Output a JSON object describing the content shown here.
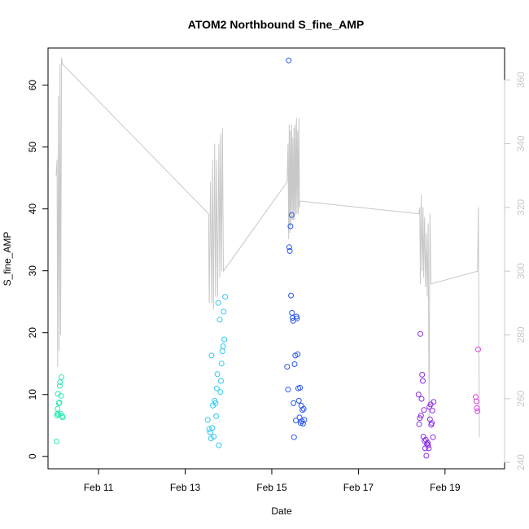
{
  "chart_data": {
    "type": "scatter",
    "title": "ATOM2 Northbound S_fine_AMP",
    "xlabel": "Date",
    "ylabel": "S_fine_AMP",
    "xlim": [
      "2024-02-09T20:00",
      "2024-02-20T09:00"
    ],
    "ylim": [
      -2,
      66
    ],
    "y2lim": [
      238,
      370
    ],
    "x_ticks": [
      "2024-02-11",
      "2024-02-13",
      "2024-02-15",
      "2024-02-17",
      "2024-02-19"
    ],
    "x_tick_labels": [
      "Feb 11",
      "Feb 13",
      "Feb 15",
      "Feb 17",
      "Feb 19"
    ],
    "y_ticks": [
      0,
      10,
      20,
      30,
      40,
      50,
      60
    ],
    "y2_ticks": [
      240,
      260,
      280,
      300,
      320,
      340,
      360
    ],
    "grid": false,
    "colors": {
      "line": "#c8c8c8",
      "axis": "#000000",
      "axis_right": "#c8c8c8",
      "groups": [
        "#2fe8b4",
        "#2fc9f0",
        "#2a55f0",
        "#8a2be8",
        "#d93ee0"
      ]
    },
    "scatter_series": [
      {
        "points": [
          [
            "2024-02-10T00:45",
            2.4
          ],
          [
            "2024-02-10T01:00",
            6.6
          ],
          [
            "2024-02-10T01:10",
            6.9
          ],
          [
            "2024-02-10T01:20",
            7.7
          ],
          [
            "2024-02-10T01:30",
            10.1
          ],
          [
            "2024-02-10T01:50",
            6.8
          ],
          [
            "2024-02-10T02:00",
            8.6
          ],
          [
            "2024-02-10T02:20",
            8.7
          ],
          [
            "2024-02-10T02:30",
            11.4
          ],
          [
            "2024-02-10T02:40",
            12.0
          ],
          [
            "2024-02-10T03:00",
            6.9
          ],
          [
            "2024-02-10T03:10",
            9.8
          ],
          [
            "2024-02-10T03:30",
            12.8
          ],
          [
            "2024-02-10T03:50",
            6.5
          ],
          [
            "2024-02-10T04:10",
            6.3
          ]
        ]
      },
      {
        "points": [
          [
            "2024-02-13T12:30",
            5.9
          ],
          [
            "2024-02-13T13:20",
            4.4
          ],
          [
            "2024-02-13T13:50",
            3.9
          ],
          [
            "2024-02-13T14:20",
            2.9
          ],
          [
            "2024-02-13T14:40",
            16.3
          ],
          [
            "2024-02-13T15:00",
            4.6
          ],
          [
            "2024-02-13T15:20",
            8.2
          ],
          [
            "2024-02-13T15:50",
            3.2
          ],
          [
            "2024-02-13T16:20",
            9.0
          ],
          [
            "2024-02-13T16:50",
            8.6
          ],
          [
            "2024-02-13T17:10",
            6.5
          ],
          [
            "2024-02-13T17:30",
            11.0
          ],
          [
            "2024-02-13T17:50",
            13.3
          ],
          [
            "2024-02-13T18:20",
            24.8
          ],
          [
            "2024-02-13T18:40",
            1.8
          ],
          [
            "2024-02-13T19:10",
            22.1
          ],
          [
            "2024-02-13T19:30",
            10.4
          ],
          [
            "2024-02-13T19:50",
            12.2
          ],
          [
            "2024-02-13T20:10",
            15.0
          ],
          [
            "2024-02-13T20:40",
            17.0
          ],
          [
            "2024-02-13T21:00",
            17.8
          ],
          [
            "2024-02-13T21:20",
            23.4
          ],
          [
            "2024-02-13T21:40",
            18.9
          ],
          [
            "2024-02-13T22:10",
            25.8
          ]
        ]
      },
      {
        "points": [
          [
            "2024-02-15T09:20",
            64.0
          ],
          [
            "2024-02-15T08:30",
            14.5
          ],
          [
            "2024-02-15T09:00",
            10.8
          ],
          [
            "2024-02-15T09:40",
            33.8
          ],
          [
            "2024-02-15T10:00",
            33.2
          ],
          [
            "2024-02-15T10:20",
            37.2
          ],
          [
            "2024-02-15T10:40",
            26.0
          ],
          [
            "2024-02-15T11:00",
            39.0
          ],
          [
            "2024-02-15T11:10",
            23.2
          ],
          [
            "2024-02-15T11:30",
            22.4
          ],
          [
            "2024-02-15T11:50",
            21.9
          ],
          [
            "2024-02-15T12:00",
            8.6
          ],
          [
            "2024-02-15T12:20",
            3.1
          ],
          [
            "2024-02-15T12:40",
            14.9
          ],
          [
            "2024-02-15T13:00",
            16.3
          ],
          [
            "2024-02-15T13:20",
            5.8
          ],
          [
            "2024-02-15T13:40",
            22.6
          ],
          [
            "2024-02-15T14:00",
            22.3
          ],
          [
            "2024-02-15T14:20",
            16.5
          ],
          [
            "2024-02-15T14:40",
            11.0
          ],
          [
            "2024-02-15T15:00",
            9.0
          ],
          [
            "2024-02-15T15:20",
            6.3
          ],
          [
            "2024-02-15T15:40",
            11.1
          ],
          [
            "2024-02-15T16:00",
            5.4
          ],
          [
            "2024-02-15T16:20",
            8.2
          ],
          [
            "2024-02-15T16:40",
            5.7
          ],
          [
            "2024-02-15T17:00",
            7.5
          ],
          [
            "2024-02-15T17:20",
            5.3
          ],
          [
            "2024-02-15T17:40",
            7.7
          ],
          [
            "2024-02-15T18:00",
            5.9
          ]
        ]
      },
      {
        "points": [
          [
            "2024-02-18T09:20",
            10.0
          ],
          [
            "2024-02-18T09:40",
            5.2
          ],
          [
            "2024-02-18T10:00",
            6.2
          ],
          [
            "2024-02-18T10:20",
            19.8
          ],
          [
            "2024-02-18T10:40",
            6.6
          ],
          [
            "2024-02-18T11:00",
            9.3
          ],
          [
            "2024-02-18T11:20",
            13.2
          ],
          [
            "2024-02-18T11:40",
            12.2
          ],
          [
            "2024-02-18T12:00",
            3.2
          ],
          [
            "2024-02-18T12:20",
            7.5
          ],
          [
            "2024-02-18T12:40",
            2.5
          ],
          [
            "2024-02-18T13:00",
            1.3
          ],
          [
            "2024-02-18T13:20",
            2.7
          ],
          [
            "2024-02-18T13:40",
            0.1
          ],
          [
            "2024-02-18T14:00",
            2.0
          ],
          [
            "2024-02-18T14:20",
            2.2
          ],
          [
            "2024-02-18T14:40",
            1.8
          ],
          [
            "2024-02-18T15:00",
            1.3
          ],
          [
            "2024-02-18T15:20",
            8.0
          ],
          [
            "2024-02-18T15:40",
            6.0
          ],
          [
            "2024-02-18T16:00",
            8.4
          ],
          [
            "2024-02-18T16:20",
            5.1
          ],
          [
            "2024-02-18T16:40",
            5.4
          ],
          [
            "2024-02-18T17:00",
            7.4
          ],
          [
            "2024-02-18T17:20",
            3.1
          ],
          [
            "2024-02-18T17:40",
            8.8
          ]
        ]
      },
      {
        "points": [
          [
            "2024-02-19T17:00",
            9.6
          ],
          [
            "2024-02-19T17:20",
            8.9
          ],
          [
            "2024-02-19T17:40",
            7.8
          ],
          [
            "2024-02-19T18:00",
            7.3
          ],
          [
            "2024-02-19T18:20",
            17.3
          ]
        ]
      }
    ],
    "line_series": {
      "axis": "right",
      "points": [
        [
          "2024-02-10T00:30",
          330
        ],
        [
          "2024-02-10T01:00",
          335
        ],
        [
          "2024-02-10T01:20",
          270
        ],
        [
          "2024-02-10T01:45",
          355
        ],
        [
          "2024-02-10T02:10",
          275
        ],
        [
          "2024-02-10T02:40",
          365
        ],
        [
          "2024-02-10T03:00",
          280
        ],
        [
          "2024-02-10T03:30",
          367
        ],
        [
          "2024-02-10T04:00",
          365
        ],
        [
          "2024-02-13T13:00",
          318
        ],
        [
          "2024-02-13T13:20",
          290
        ],
        [
          "2024-02-13T14:00",
          328
        ],
        [
          "2024-02-13T14:40",
          290
        ],
        [
          "2024-02-13T15:10",
          335
        ],
        [
          "2024-02-13T15:40",
          288
        ],
        [
          "2024-02-13T16:20",
          340
        ],
        [
          "2024-02-13T16:50",
          292
        ],
        [
          "2024-02-13T17:20",
          335
        ],
        [
          "2024-02-13T18:00",
          292
        ],
        [
          "2024-02-13T18:40",
          340
        ],
        [
          "2024-02-13T19:10",
          298
        ],
        [
          "2024-02-13T19:40",
          343
        ],
        [
          "2024-02-13T20:10",
          300
        ],
        [
          "2024-02-13T20:40",
          345
        ],
        [
          "2024-02-13T21:10",
          300
        ],
        [
          "2024-02-15T08:30",
          328
        ],
        [
          "2024-02-15T09:00",
          340
        ],
        [
          "2024-02-15T09:20",
          310
        ],
        [
          "2024-02-15T09:40",
          346
        ],
        [
          "2024-02-15T10:00",
          312
        ],
        [
          "2024-02-15T10:20",
          344
        ],
        [
          "2024-02-15T10:40",
          314
        ],
        [
          "2024-02-15T11:00",
          346
        ],
        [
          "2024-02-15T11:20",
          316
        ],
        [
          "2024-02-15T11:40",
          342
        ],
        [
          "2024-02-15T12:00",
          316
        ],
        [
          "2024-02-15T12:20",
          345
        ],
        [
          "2024-02-15T12:40",
          316
        ],
        [
          "2024-02-15T13:00",
          346
        ],
        [
          "2024-02-15T13:20",
          318
        ],
        [
          "2024-02-15T13:40",
          348
        ],
        [
          "2024-02-15T14:00",
          318
        ],
        [
          "2024-02-15T14:20",
          344
        ],
        [
          "2024-02-15T14:40",
          318
        ],
        [
          "2024-02-15T15:00",
          348
        ],
        [
          "2024-02-15T15:20",
          320
        ],
        [
          "2024-02-15T15:40",
          322
        ],
        [
          "2024-02-18T09:30",
          318
        ],
        [
          "2024-02-18T10:00",
          320
        ],
        [
          "2024-02-18T10:20",
          296
        ],
        [
          "2024-02-18T10:50",
          324
        ],
        [
          "2024-02-18T11:20",
          300
        ],
        [
          "2024-02-18T11:50",
          320
        ],
        [
          "2024-02-18T12:10",
          298
        ],
        [
          "2024-02-18T12:40",
          317
        ],
        [
          "2024-02-18T13:10",
          295
        ],
        [
          "2024-02-18T13:40",
          312
        ],
        [
          "2024-02-18T14:10",
          292
        ],
        [
          "2024-02-18T14:40",
          315
        ],
        [
          "2024-02-18T15:10",
          252
        ],
        [
          "2024-02-18T15:40",
          318
        ],
        [
          "2024-02-18T16:10",
          296
        ],
        [
          "2024-02-19T18:00",
          300
        ],
        [
          "2024-02-19T18:30",
          320
        ],
        [
          "2024-02-19T19:00",
          248
        ]
      ]
    }
  }
}
